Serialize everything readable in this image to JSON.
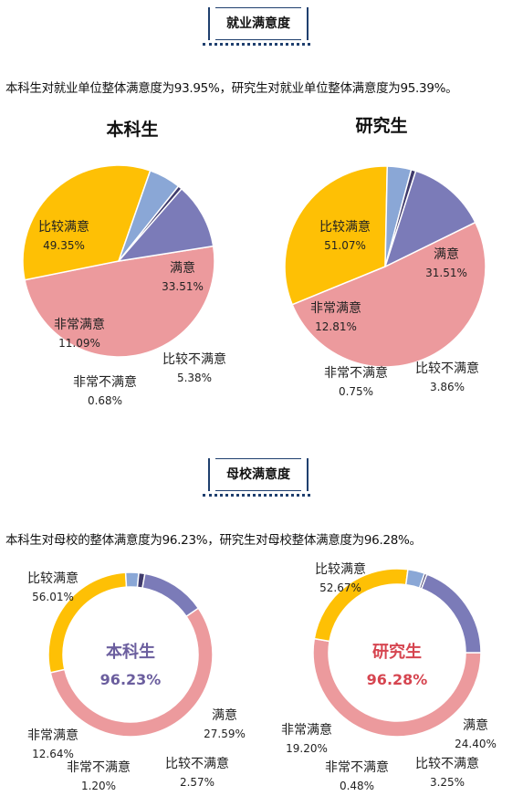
{
  "sections": {
    "employment": {
      "title": "就业满意度",
      "summary": "本科生对就业单位整体满意度为93.95%，研究生对就业单位整体满意度为95.39%。"
    },
    "school": {
      "title": "母校满意度",
      "summary": "本科生对母校的整体满意度为96.23%，研究生对母校整体满意度为96.28%。"
    }
  },
  "colors": {
    "比较满意": "#ec9a9d",
    "满意": "#fec005",
    "比较不满意": "#8aa7d6",
    "非常不满意": "#3f3a6b",
    "非常满意": "#7b7bb8"
  },
  "chart_data": [
    {
      "type": "pie",
      "title": "本科生",
      "categories": [
        "比较满意",
        "满意",
        "比较不满意",
        "非常不满意",
        "非常满意"
      ],
      "values": [
        49.35,
        33.51,
        5.38,
        0.68,
        11.09
      ],
      "labels": [
        "49.35%",
        "33.51%",
        "5.38%",
        "0.68%",
        "11.09%"
      ]
    },
    {
      "type": "pie",
      "title": "研究生",
      "categories": [
        "比较满意",
        "满意",
        "比较不满意",
        "非常不满意",
        "非常满意"
      ],
      "values": [
        51.07,
        31.51,
        3.86,
        0.75,
        12.81
      ],
      "labels": [
        "51.07%",
        "31.51%",
        "3.86%",
        "0.75%",
        "12.81%"
      ]
    },
    {
      "type": "donut",
      "center_title": "本科生",
      "center_value": "96.23%",
      "center_color": "#6b5e9e",
      "categories": [
        "比较满意",
        "满意",
        "比较不满意",
        "非常不满意",
        "非常满意"
      ],
      "values": [
        56.01,
        27.59,
        2.57,
        1.2,
        12.64
      ],
      "labels": [
        "56.01%",
        "27.59%",
        "2.57%",
        "1.20%",
        "12.64%"
      ]
    },
    {
      "type": "donut",
      "center_title": "研究生",
      "center_value": "96.28%",
      "center_color": "#d64550",
      "categories": [
        "比较满意",
        "满意",
        "比较不满意",
        "非常不满意",
        "非常满意"
      ],
      "values": [
        52.67,
        24.4,
        3.25,
        0.48,
        19.2
      ],
      "labels": [
        "52.67%",
        "24.40%",
        "3.25%",
        "0.48%",
        "19.20%"
      ]
    }
  ]
}
